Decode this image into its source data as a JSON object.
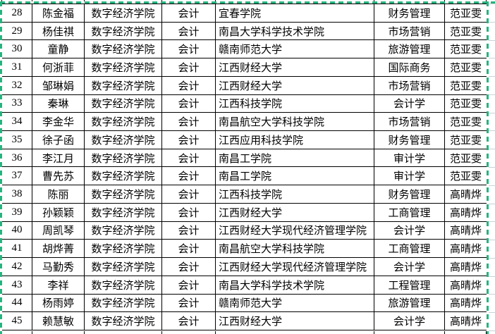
{
  "table": {
    "columns": [
      {
        "key": "no",
        "align": "center"
      },
      {
        "key": "name",
        "align": "center"
      },
      {
        "key": "college",
        "align": "center"
      },
      {
        "key": "class",
        "align": "center"
      },
      {
        "key": "school",
        "align": "left"
      },
      {
        "key": "major",
        "align": "center"
      },
      {
        "key": "advisor",
        "align": "center"
      }
    ],
    "rows": [
      [
        "28",
        "陈金福",
        "数字经济学院",
        "会计",
        "宜春学院",
        "财务管理",
        "范亚雯"
      ],
      [
        "29",
        "杨佳祺",
        "数字经济学院",
        "会计",
        "南昌大学科学技术学院",
        "市场营销",
        "范亚雯"
      ],
      [
        "30",
        "童静",
        "数字经济学院",
        "会计",
        "赣南师范大学",
        "旅游管理",
        "范亚雯"
      ],
      [
        "31",
        "何浙菲",
        "数字经济学院",
        "会计",
        "江西财经大学",
        "国际商务",
        "范亚雯"
      ],
      [
        "32",
        "邹琳娟",
        "数字经济学院",
        "会计",
        "江西财经大学",
        "市场营销",
        "范亚雯"
      ],
      [
        "33",
        "秦琳",
        "数字经济学院",
        "会计",
        "江西科技学院",
        "会计学",
        "范亚雯"
      ],
      [
        "34",
        "李金华",
        "数字经济学院",
        "会计",
        "南昌航空大学科技学院",
        "市场营销",
        "范亚雯"
      ],
      [
        "35",
        "徐子函",
        "数字经济学院",
        "会计",
        "江西应用科技学院",
        "财务管理",
        "范亚雯"
      ],
      [
        "36",
        "李江月",
        "数字经济学院",
        "会计",
        "南昌工学院",
        "审计学",
        "范亚雯"
      ],
      [
        "37",
        "曹先苏",
        "数字经济学院",
        "会计",
        "南昌工学院",
        "审计学",
        "范亚雯"
      ],
      [
        "38",
        "陈丽",
        "数字经济学院",
        "会计",
        "江西科技学院",
        "财务管理",
        "高晴烨"
      ],
      [
        "39",
        "孙颖颖",
        "数字经济学院",
        "会计",
        "江西财经大学",
        "工商管理",
        "高晴烨"
      ],
      [
        "40",
        "周凯琴",
        "数字经济学院",
        "会计",
        "江西财经大学现代经济管理学院",
        "会计学",
        "高晴烨"
      ],
      [
        "41",
        "胡烨菁",
        "数字经济学院",
        "会计",
        "南昌航空大学科技学院",
        "工商管理",
        "高晴烨"
      ],
      [
        "42",
        "马勤秀",
        "数字经济学院",
        "会计",
        "江西财经大学现代经济管理学院",
        "会计学",
        "高晴烨"
      ],
      [
        "43",
        "李祥",
        "数字经济学院",
        "会计",
        "南昌大学科学技术学院",
        "工程管理",
        "高晴烨"
      ],
      [
        "44",
        "杨雨婷",
        "数字经济学院",
        "会计",
        "赣南师范大学",
        "旅游管理",
        "高晴烨"
      ],
      [
        "45",
        "赖慧敏",
        "数字经济学院",
        "会计",
        "江西财经大学",
        "会计学",
        "高晴烨"
      ]
    ]
  },
  "colors": {
    "selection_ants": "#25b47e",
    "cell_border": "#000000",
    "gridline": "#c9d1d7",
    "background": "#ffffff"
  }
}
